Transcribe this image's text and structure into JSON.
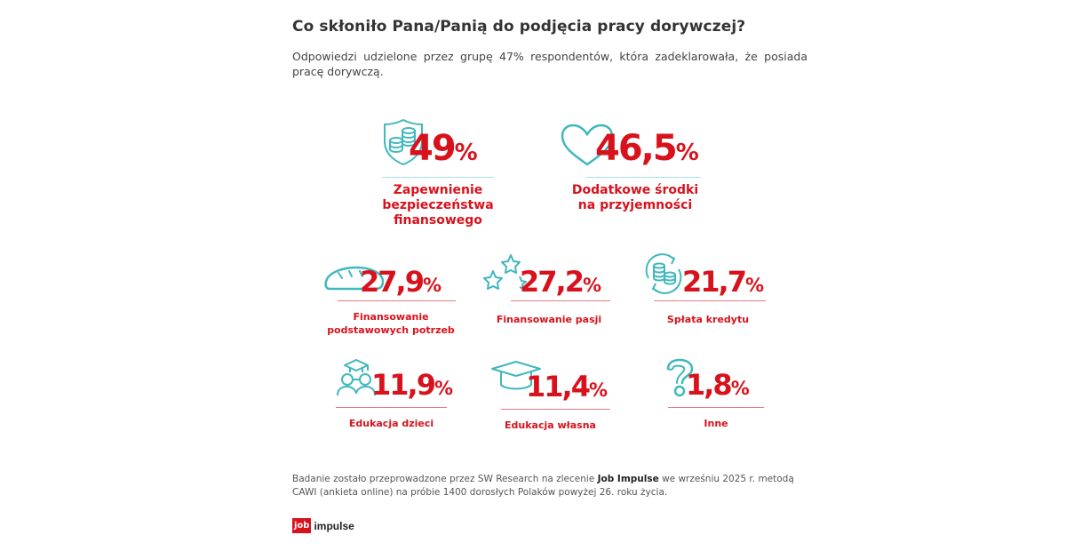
{
  "header": {
    "title": "Co skłoniło Pana/Panią do podjęcia pracy dorywczej?",
    "subtitle": "Odpowiedzi udzielone przez grupę 47% respondentów, która zadeklarowała, że posiada pracę dorywczą."
  },
  "colors": {
    "accent": "#d8121c",
    "icon": "#3fb8be",
    "line_light": "#a8dfe2",
    "line_red": "#e77b80"
  },
  "stats": [
    {
      "value": "49",
      "unit": "%",
      "label_lines": [
        "Zapewnienie",
        "bezpieczeństwa",
        "finansowego"
      ],
      "icon": "shield-coins-icon"
    },
    {
      "value": "46,5",
      "unit": "%",
      "label_lines": [
        "Dodatkowe środki",
        "na przyjemności"
      ],
      "icon": "heart-icon"
    },
    {
      "value": "27,9",
      "unit": "%",
      "label_lines": [
        "Finansowanie",
        "podstawowych potrzeb"
      ],
      "icon": "bread-icon"
    },
    {
      "value": "27,2",
      "unit": "%",
      "label_lines": [
        "Finansowanie pasji"
      ],
      "icon": "stars-icon"
    },
    {
      "value": "21,7",
      "unit": "%",
      "label_lines": [
        "Spłata kredytu"
      ],
      "icon": "coins-cycle-icon"
    },
    {
      "value": "11,9",
      "unit": "%",
      "label_lines": [
        "Edukacja dzieci"
      ],
      "icon": "family-graduation-icon"
    },
    {
      "value": "11,4",
      "unit": "%",
      "label_lines": [
        "Edukacja własna"
      ],
      "icon": "graduation-cap-icon"
    },
    {
      "value": "1,8",
      "unit": "%",
      "label_lines": [
        "Inne"
      ],
      "icon": "question-mark-icon"
    }
  ],
  "footer": {
    "text_before": "Badanie zostało przeprowadzone przez SW Research na zlecenie ",
    "brand": "Job Impulse",
    "text_after": " we wrześniu 2025 r. metodą CAWI (ankieta online) na próbie 1400 dorosłych Polaków powyżej 26. roku życia."
  },
  "logo": {
    "box": "job",
    "text": "impulse"
  }
}
